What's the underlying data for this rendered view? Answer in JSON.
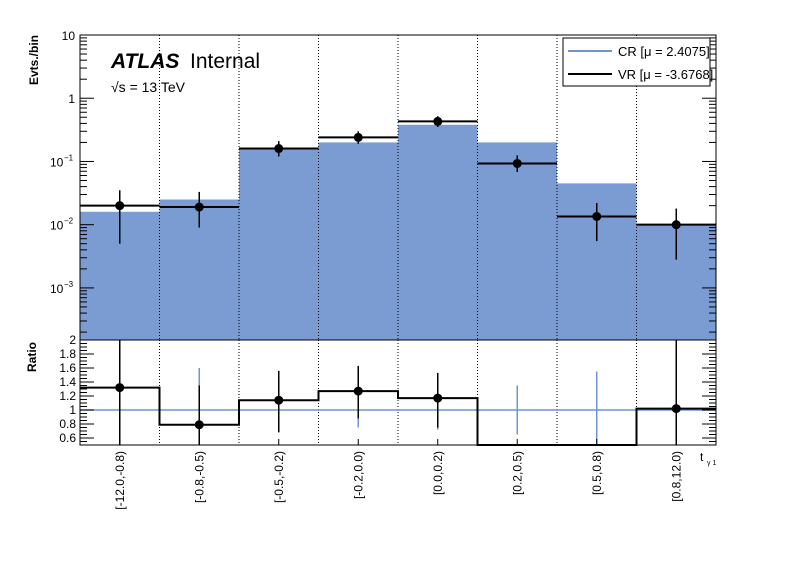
{
  "chart_data": [
    {
      "panel": "main",
      "type": "bar",
      "ylabel": "Evts./bin",
      "yscale": "log",
      "ylim": [
        0.00015,
        10
      ],
      "yticks": [
        {
          "value": 10,
          "base": "10",
          "exp": ""
        },
        {
          "value": 1,
          "base": "1",
          "exp": ""
        },
        {
          "value": 0.1,
          "base": "10",
          "exp": "−1"
        },
        {
          "value": 0.01,
          "base": "10",
          "exp": "−2"
        },
        {
          "value": 0.001,
          "base": "10",
          "exp": "−3"
        }
      ],
      "categories": [
        "[-12.0,-0.8)",
        "[-0.8,-0.5)",
        "[-0.5,-0.2)",
        "[-0.2,0.0)",
        "[0.0,0.2)",
        "[0.2,0.5)",
        "[0.5,0.8)",
        "[0.8,12.0)"
      ],
      "series": [
        {
          "name": "CR [μ = 2.4075]",
          "color": "#7b9bd3",
          "line_color": "#6f94cf",
          "values": [
            0.016,
            0.025,
            0.155,
            0.2,
            0.38,
            0.2,
            0.045,
            0.01
          ]
        },
        {
          "name": "VR [μ = -3.6768]",
          "color": "#000000",
          "values": [
            0.02,
            0.019,
            0.16,
            0.24,
            0.43,
            0.093,
            0.0135,
            0.01
          ],
          "err_low": [
            0.005,
            0.009,
            0.12,
            0.19,
            0.35,
            0.068,
            0.0055,
            0.0028
          ],
          "err_high": [
            0.035,
            0.033,
            0.21,
            0.3,
            0.52,
            0.125,
            0.022,
            0.018
          ]
        }
      ],
      "atlas_label": "ATLAS",
      "atlas_sub": "Internal",
      "energy_label": "√s = 13 TeV",
      "grid": "vertical dotted lines at bin edges",
      "legend_position": "top-right"
    },
    {
      "panel": "ratio",
      "type": "bar",
      "ylabel": "Ratio",
      "ylim": [
        0.5,
        2.0
      ],
      "yticks": [
        "0.6",
        "0.8",
        "1",
        "1.2",
        "1.4",
        "1.6",
        "1.8",
        "2"
      ],
      "xlabel": "t",
      "xlabel_sub": "γ 1",
      "reference_line": 1,
      "vr_ratio": [
        1.32,
        0.79,
        1.14,
        1.27,
        1.17,
        0.45,
        0.45,
        1.02
      ],
      "vr_marker": [
        true,
        true,
        true,
        true,
        true,
        false,
        false,
        true
      ],
      "vr_err_low": [
        0.5,
        0.5,
        0.68,
        0.88,
        0.75,
        null,
        null,
        0.5
      ],
      "vr_err_high": [
        2.0,
        1.35,
        1.56,
        1.63,
        1.53,
        null,
        null,
        2.0
      ],
      "cr_err_low": [
        null,
        0.5,
        null,
        0.75,
        0.72,
        0.65,
        0.5,
        null
      ],
      "cr_err_high": [
        null,
        1.6,
        null,
        1.5,
        1.5,
        1.35,
        1.55,
        null
      ]
    }
  ]
}
